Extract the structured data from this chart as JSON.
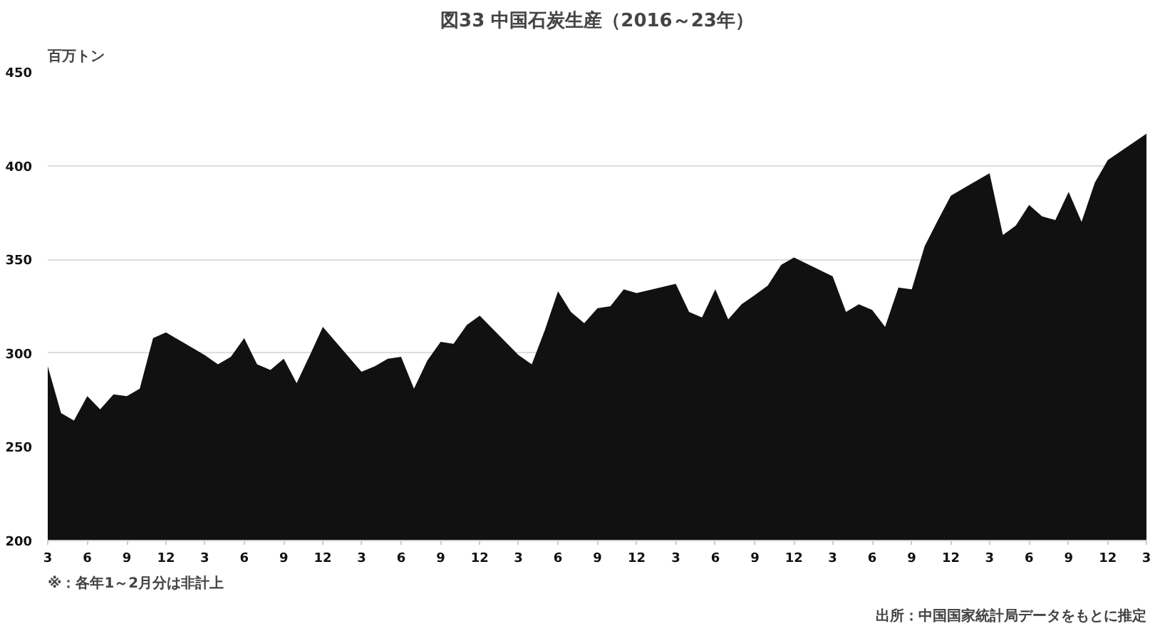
{
  "chart_data": {
    "type": "area",
    "title": "図33 中国石炭生産（2016～23年）",
    "ylabel": "百万トン",
    "x": [
      "2016-03",
      "2016-04",
      "2016-05",
      "2016-06",
      "2016-07",
      "2016-08",
      "2016-09",
      "2016-10",
      "2016-11",
      "2016-12",
      "2017-03",
      "2017-04",
      "2017-05",
      "2017-06",
      "2017-07",
      "2017-08",
      "2017-09",
      "2017-10",
      "2017-11",
      "2017-12",
      "2018-03",
      "2018-04",
      "2018-05",
      "2018-06",
      "2018-07",
      "2018-08",
      "2018-09",
      "2018-10",
      "2018-11",
      "2018-12",
      "2019-03",
      "2019-04",
      "2019-05",
      "2019-06",
      "2019-07",
      "2019-08",
      "2019-09",
      "2019-10",
      "2019-11",
      "2019-12",
      "2020-03",
      "2020-04",
      "2020-05",
      "2020-06",
      "2020-07",
      "2020-08",
      "2020-09",
      "2020-10",
      "2020-11",
      "2020-12",
      "2021-03",
      "2021-04",
      "2021-05",
      "2021-06",
      "2021-07",
      "2021-08",
      "2021-09",
      "2021-10",
      "2021-11",
      "2021-12",
      "2022-03",
      "2022-04",
      "2022-05",
      "2022-06",
      "2022-07",
      "2022-08",
      "2022-09",
      "2022-10",
      "2022-11",
      "2022-12",
      "2023-03"
    ],
    "values": [
      293,
      268,
      264,
      277,
      270,
      278,
      277,
      281,
      308,
      311,
      299,
      294,
      298,
      308,
      294,
      291,
      297,
      284,
      299,
      314,
      290,
      293,
      297,
      298,
      281,
      296,
      306,
      305,
      315,
      320,
      299,
      294,
      312,
      333,
      322,
      316,
      324,
      325,
      334,
      332,
      337,
      322,
      319,
      334,
      318,
      326,
      331,
      336,
      347,
      351,
      341,
      322,
      326,
      323,
      314,
      335,
      334,
      357,
      371,
      384,
      396,
      363,
      368,
      379,
      373,
      371,
      386,
      370,
      391,
      403,
      417
    ],
    "color": "#111111",
    "ylim": [
      200,
      450
    ],
    "yticks": [
      200,
      250,
      300,
      350,
      400,
      450
    ],
    "grid": "y",
    "xlim": [
      "2016-03",
      "2023-03"
    ],
    "xticks": [
      {
        "value": "2016-03",
        "label": "3"
      },
      {
        "value": "2016-06",
        "label": "6"
      },
      {
        "value": "2016-09",
        "label": "9"
      },
      {
        "value": "2016-12",
        "label": "12"
      },
      {
        "value": "2017-03",
        "label": "3"
      },
      {
        "value": "2017-06",
        "label": "6"
      },
      {
        "value": "2017-09",
        "label": "9"
      },
      {
        "value": "2017-12",
        "label": "12"
      },
      {
        "value": "2018-03",
        "label": "3"
      },
      {
        "value": "2018-06",
        "label": "6"
      },
      {
        "value": "2018-09",
        "label": "9"
      },
      {
        "value": "2018-12",
        "label": "12"
      },
      {
        "value": "2019-03",
        "label": "3"
      },
      {
        "value": "2019-06",
        "label": "6"
      },
      {
        "value": "2019-09",
        "label": "9"
      },
      {
        "value": "2019-12",
        "label": "12"
      },
      {
        "value": "2020-03",
        "label": "3"
      },
      {
        "value": "2020-06",
        "label": "6"
      },
      {
        "value": "2020-09",
        "label": "9"
      },
      {
        "value": "2020-12",
        "label": "12"
      },
      {
        "value": "2021-03",
        "label": "3"
      },
      {
        "value": "2021-06",
        "label": "6"
      },
      {
        "value": "2021-09",
        "label": "9"
      },
      {
        "value": "2021-12",
        "label": "12"
      },
      {
        "value": "2022-03",
        "label": "3"
      },
      {
        "value": "2022-06",
        "label": "6"
      },
      {
        "value": "2022-09",
        "label": "9"
      },
      {
        "value": "2022-12",
        "label": "12"
      },
      {
        "value": "2023-03",
        "label": "3"
      }
    ],
    "annotations": [
      "※：各年1～2月分は非計上",
      "出所：中国国家統計局データをもとに推定"
    ]
  }
}
